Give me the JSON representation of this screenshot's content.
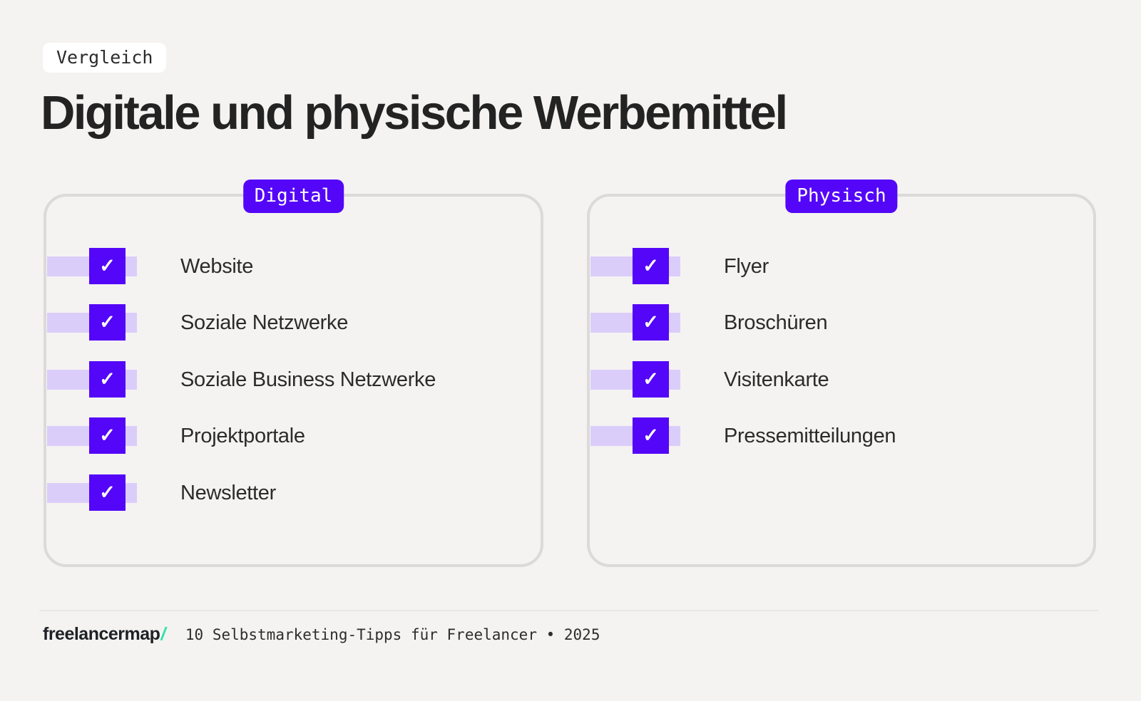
{
  "header": {
    "tag": "Vergleich",
    "title": "Digitale und physische Werbemittel"
  },
  "cards": [
    {
      "badge": "Digital",
      "items": [
        "Website",
        "Soziale Netzwerke",
        "Soziale Business Netzwerke",
        "Projektportale",
        "Newsletter"
      ]
    },
    {
      "badge": "Physisch",
      "items": [
        "Flyer",
        "Broschüren",
        "Visitenkarte",
        "Pressemitteilungen"
      ]
    }
  ],
  "icons": {
    "check": "✓"
  },
  "colors": {
    "accent_purple": "#5406F8",
    "band_lavender": "#DBCDFA",
    "background": "#F4F3F1",
    "card_border": "#DBDAD8",
    "logo_slash_teal": "#2BE3AC"
  },
  "footer": {
    "logo_text": "freelancermap",
    "logo_slash": "/",
    "caption": "10 Selbstmarketing-Tipps für Freelancer • 2025"
  }
}
